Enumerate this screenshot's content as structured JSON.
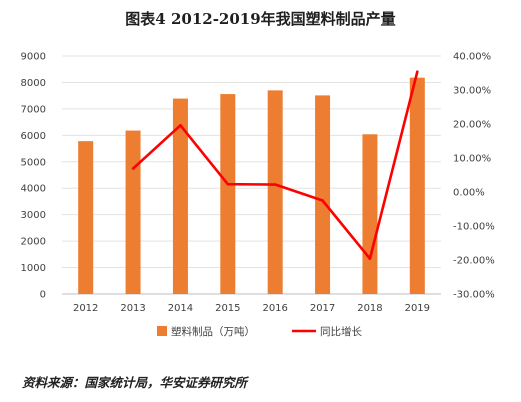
{
  "title": "图表4 2012-2019年我国塑料制品产量",
  "source": "资料来源：国家统计局，华安证券研究所",
  "chart_data": {
    "type": "bar",
    "categories": [
      "2012",
      "2013",
      "2014",
      "2015",
      "2016",
      "2017",
      "2018",
      "2019"
    ],
    "series": [
      {
        "name": "塑料制品（万吨）",
        "type": "bar",
        "axis": "left",
        "color": "#ED7D31",
        "values": [
          5780,
          6180,
          7390,
          7560,
          7700,
          7510,
          6040,
          8180
        ]
      },
      {
        "name": "同比增长",
        "type": "line",
        "axis": "right",
        "color": "#FF0000",
        "values": [
          null,
          6.9,
          19.6,
          2.3,
          2.2,
          -2.5,
          -19.6,
          35.4
        ]
      }
    ],
    "y_left": {
      "min": 0,
      "max": 9000,
      "step": 1000,
      "tick_labels": [
        "0",
        "1000",
        "2000",
        "3000",
        "4000",
        "5000",
        "6000",
        "7000",
        "8000",
        "9000"
      ]
    },
    "y_right": {
      "min": -30,
      "max": 40,
      "step": 10,
      "tick_labels": [
        "-30.00%",
        "-20.00%",
        "-10.00%",
        "0.00%",
        "10.00%",
        "20.00%",
        "30.00%",
        "40.00%"
      ]
    },
    "grid": true,
    "legend_position": "bottom"
  }
}
